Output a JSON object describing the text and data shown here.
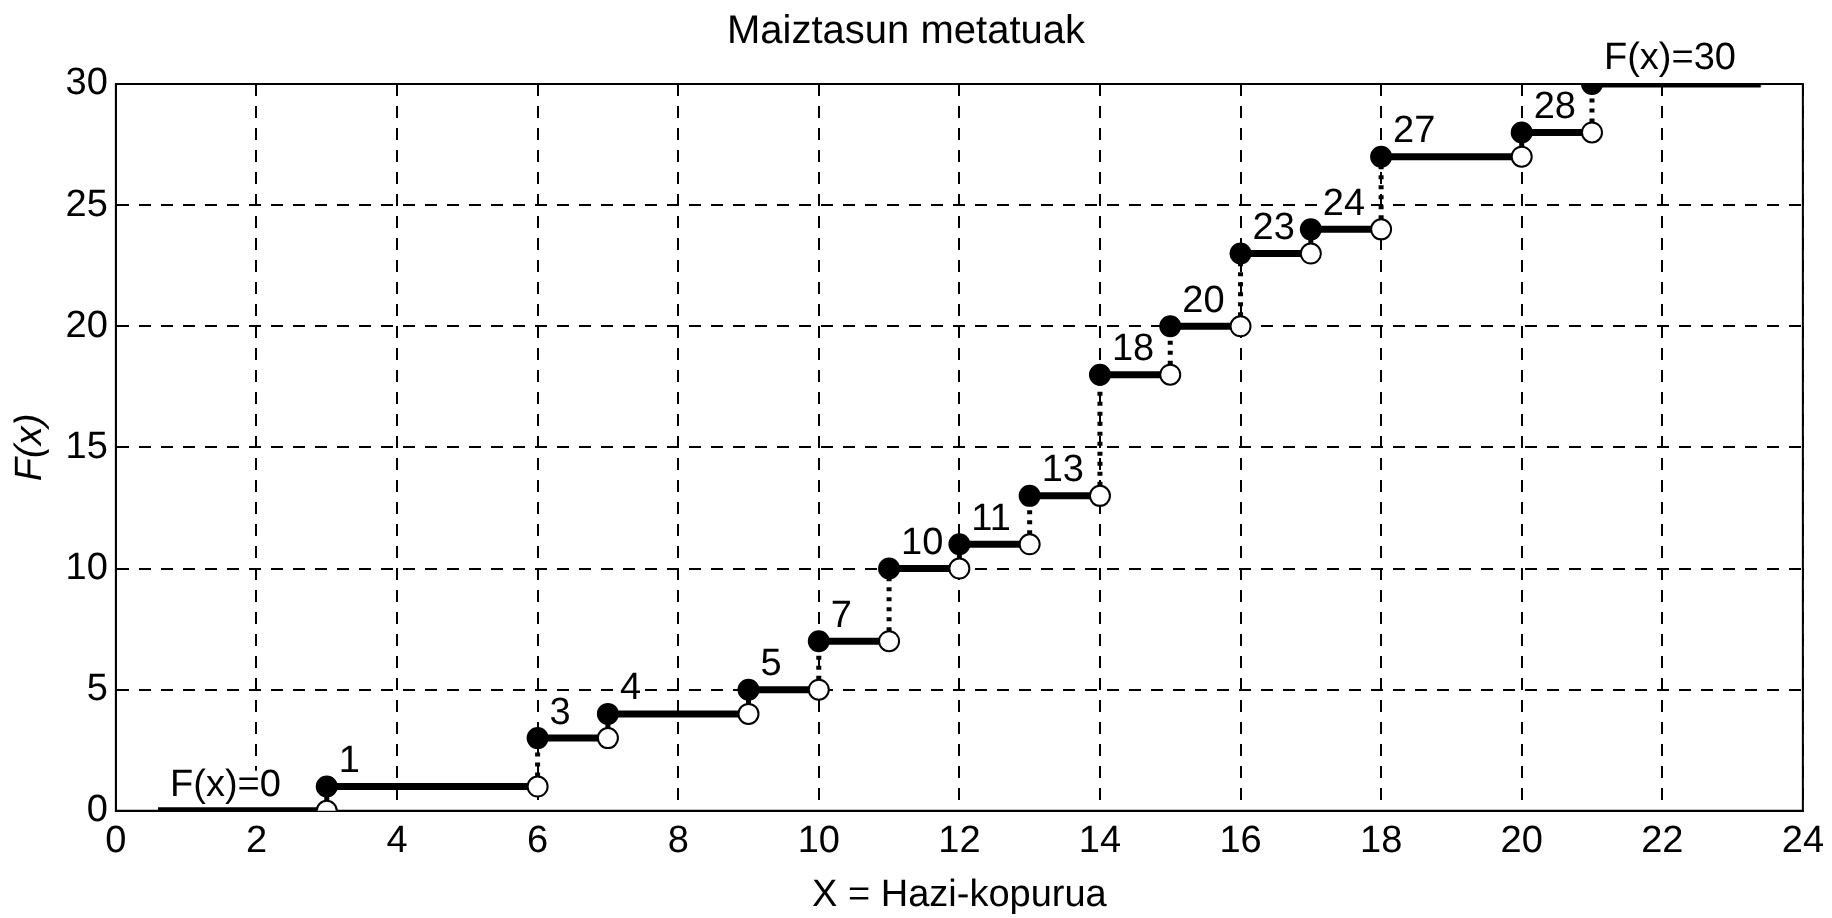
{
  "chart_data": {
    "type": "step",
    "title": "Maiztasun metatuak",
    "xlabel": "X = Hazi-kopurua",
    "ylabel": "F(x)",
    "x": [
      0.6,
      3,
      6,
      7,
      9,
      10,
      11,
      12,
      13,
      14,
      15,
      16,
      17,
      18,
      20,
      21,
      23.4
    ],
    "series": [
      {
        "color": "#000000",
        "marker": "none",
        "line_style": "solid",
        "values": [
          0,
          1,
          3,
          4,
          5,
          7,
          10,
          11,
          13,
          18,
          20,
          23,
          24,
          27,
          28,
          30,
          30
        ],
        "value_labels": [
          "F(x)=0",
          "1",
          "3",
          "4",
          "5",
          "7",
          "10",
          "11",
          "13",
          "18",
          "20",
          "23",
          "24",
          "27",
          "28",
          "F(x)=30",
          null
        ]
      },
      {
        "type": "scatter",
        "color": "#000000",
        "marker": "circle",
        "x": [
          3,
          6,
          7,
          9,
          10,
          11,
          12,
          13,
          14,
          15,
          16,
          17,
          18,
          20,
          21
        ],
        "values": [
          1,
          3,
          4,
          5,
          7,
          10,
          11,
          13,
          18,
          20,
          23,
          24,
          27,
          28,
          30
        ]
      },
      {
        "type": "scatter",
        "color": "#ffffff",
        "marker": "circle",
        "x": [
          3,
          6,
          7,
          9,
          10,
          11,
          12,
          13,
          14,
          15,
          16,
          17,
          18,
          20,
          21
        ],
        "values": [
          0,
          1,
          3,
          4,
          5,
          7,
          10,
          11,
          13,
          18,
          20,
          23,
          24,
          27,
          28
        ]
      }
    ],
    "xlim": [
      0,
      24
    ],
    "xticks": [
      0,
      2,
      4,
      6,
      8,
      10,
      12,
      14,
      16,
      18,
      20,
      22,
      24
    ],
    "ylim": [
      0,
      30
    ],
    "yticks": [
      0,
      5,
      10,
      15,
      20,
      25,
      30
    ],
    "grid": true,
    "legend": false
  }
}
